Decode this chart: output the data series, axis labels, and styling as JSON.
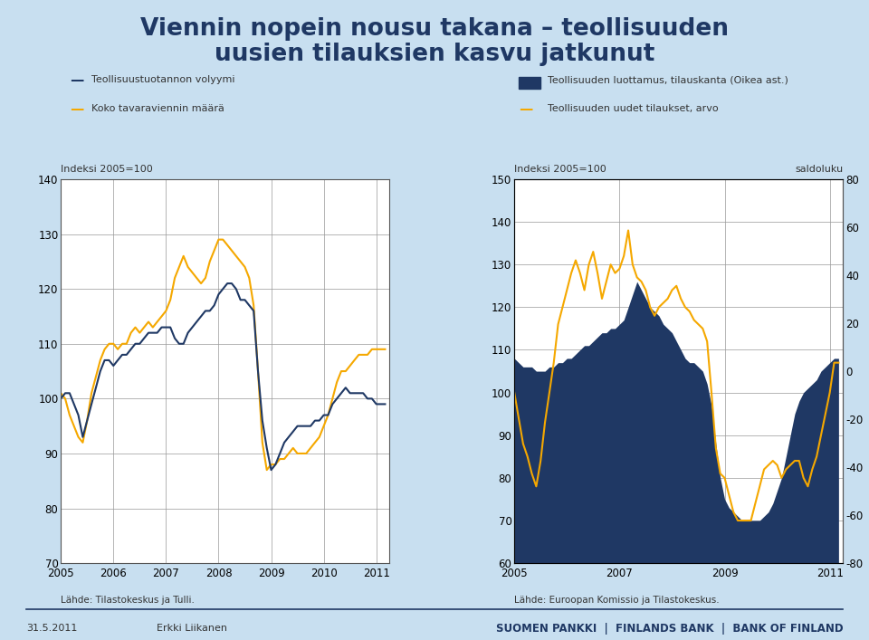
{
  "title_line1": "Viennin nopein nousu takana – teollisuuden",
  "title_line2": "uusien tilauksien kasvu jatkunut",
  "bg_color": "#c8dff0",
  "chart_bg": "#ffffff",
  "footer_left": "31.5.2011",
  "footer_center": "Erkki Liikanen",
  "footer_right": "SUOMEN PANKKI  |  FINLANDS BANK  |  BANK OF FINLAND",
  "chart1": {
    "legend1": "Teollisuustuotannon volyymi",
    "legend2": "Koko tavaraviennin määrä",
    "ylabel": "Indeksi 2005=100",
    "source": "Lähde: Tilastokeskus ja Tulli.",
    "ylim": [
      70,
      140
    ],
    "yticks": [
      70,
      80,
      90,
      100,
      110,
      120,
      130,
      140
    ],
    "color1": "#1f3864",
    "color2": "#f5a800",
    "line1_x": [
      2005.0,
      2005.083,
      2005.167,
      2005.25,
      2005.333,
      2005.417,
      2005.5,
      2005.583,
      2005.667,
      2005.75,
      2005.833,
      2005.917,
      2006.0,
      2006.083,
      2006.167,
      2006.25,
      2006.333,
      2006.417,
      2006.5,
      2006.583,
      2006.667,
      2006.75,
      2006.833,
      2006.917,
      2007.0,
      2007.083,
      2007.167,
      2007.25,
      2007.333,
      2007.417,
      2007.5,
      2007.583,
      2007.667,
      2007.75,
      2007.833,
      2007.917,
      2008.0,
      2008.083,
      2008.167,
      2008.25,
      2008.333,
      2008.417,
      2008.5,
      2008.583,
      2008.667,
      2008.75,
      2008.833,
      2008.917,
      2009.0,
      2009.083,
      2009.167,
      2009.25,
      2009.333,
      2009.417,
      2009.5,
      2009.583,
      2009.667,
      2009.75,
      2009.833,
      2009.917,
      2010.0,
      2010.083,
      2010.167,
      2010.25,
      2010.333,
      2010.417,
      2010.5,
      2010.583,
      2010.667,
      2010.75,
      2010.833,
      2010.917,
      2011.0,
      2011.083,
      2011.167
    ],
    "line1_y": [
      100,
      101,
      101,
      99,
      97,
      93,
      96,
      99,
      102,
      105,
      107,
      107,
      106,
      107,
      108,
      108,
      109,
      110,
      110,
      111,
      112,
      112,
      112,
      113,
      113,
      113,
      111,
      110,
      110,
      112,
      113,
      114,
      115,
      116,
      116,
      117,
      119,
      120,
      121,
      121,
      120,
      118,
      118,
      117,
      116,
      105,
      96,
      91,
      87,
      88,
      90,
      92,
      93,
      94,
      95,
      95,
      95,
      95,
      96,
      96,
      97,
      97,
      99,
      100,
      101,
      102,
      101,
      101,
      101,
      101,
      100,
      100,
      99,
      99,
      99
    ],
    "line2_x": [
      2005.0,
      2005.083,
      2005.167,
      2005.25,
      2005.333,
      2005.417,
      2005.5,
      2005.583,
      2005.667,
      2005.75,
      2005.833,
      2005.917,
      2006.0,
      2006.083,
      2006.167,
      2006.25,
      2006.333,
      2006.417,
      2006.5,
      2006.583,
      2006.667,
      2006.75,
      2006.833,
      2006.917,
      2007.0,
      2007.083,
      2007.167,
      2007.25,
      2007.333,
      2007.417,
      2007.5,
      2007.583,
      2007.667,
      2007.75,
      2007.833,
      2007.917,
      2008.0,
      2008.083,
      2008.167,
      2008.25,
      2008.333,
      2008.417,
      2008.5,
      2008.583,
      2008.667,
      2008.75,
      2008.833,
      2008.917,
      2009.0,
      2009.083,
      2009.167,
      2009.25,
      2009.333,
      2009.417,
      2009.5,
      2009.583,
      2009.667,
      2009.75,
      2009.833,
      2009.917,
      2010.0,
      2010.083,
      2010.167,
      2010.25,
      2010.333,
      2010.417,
      2010.5,
      2010.583,
      2010.667,
      2010.75,
      2010.833,
      2010.917,
      2011.0,
      2011.083,
      2011.167
    ],
    "line2_y": [
      101,
      100,
      97,
      95,
      93,
      92,
      96,
      101,
      104,
      107,
      109,
      110,
      110,
      109,
      110,
      110,
      112,
      113,
      112,
      113,
      114,
      113,
      114,
      115,
      116,
      118,
      122,
      124,
      126,
      124,
      123,
      122,
      121,
      122,
      125,
      127,
      129,
      129,
      128,
      127,
      126,
      125,
      124,
      122,
      117,
      105,
      92,
      87,
      88,
      88,
      89,
      89,
      90,
      91,
      90,
      90,
      90,
      91,
      92,
      93,
      95,
      97,
      100,
      103,
      105,
      105,
      106,
      107,
      108,
      108,
      108,
      109,
      109,
      109,
      109
    ]
  },
  "chart2": {
    "legend1": "Teollisuuden luottamus, tilauskanta (Oikea ast.)",
    "legend2": "Teollisuuden uudet tilaukset, arvo",
    "ylabel_left": "Indeksi 2005=100",
    "ylabel_right": "saldoluku",
    "source": "Lähde: Euroopan Komissio ja Tilastokeskus.",
    "ylim_left": [
      60,
      150
    ],
    "ylim_right": [
      -80,
      80
    ],
    "yticks_left": [
      60,
      70,
      80,
      90,
      100,
      110,
      120,
      130,
      140,
      150
    ],
    "yticks_right": [
      -80,
      -60,
      -40,
      -20,
      0,
      20,
      40,
      60,
      80
    ],
    "color_fill": "#1f3864",
    "color_line": "#f5a800",
    "fill_x": [
      2005.0,
      2005.083,
      2005.167,
      2005.25,
      2005.333,
      2005.417,
      2005.5,
      2005.583,
      2005.667,
      2005.75,
      2005.833,
      2005.917,
      2006.0,
      2006.083,
      2006.167,
      2006.25,
      2006.333,
      2006.417,
      2006.5,
      2006.583,
      2006.667,
      2006.75,
      2006.833,
      2006.917,
      2007.0,
      2007.083,
      2007.167,
      2007.25,
      2007.333,
      2007.417,
      2007.5,
      2007.583,
      2007.667,
      2007.75,
      2007.833,
      2007.917,
      2008.0,
      2008.083,
      2008.167,
      2008.25,
      2008.333,
      2008.417,
      2008.5,
      2008.583,
      2008.667,
      2008.75,
      2008.833,
      2008.917,
      2009.0,
      2009.083,
      2009.167,
      2009.25,
      2009.333,
      2009.417,
      2009.5,
      2009.583,
      2009.667,
      2009.75,
      2009.833,
      2009.917,
      2010.0,
      2010.083,
      2010.167,
      2010.25,
      2010.333,
      2010.417,
      2010.5,
      2010.583,
      2010.667,
      2010.75,
      2010.833,
      2010.917,
      2011.0,
      2011.083,
      2011.167
    ],
    "fill_y": [
      108,
      107,
      106,
      106,
      106,
      105,
      105,
      105,
      106,
      106,
      107,
      107,
      108,
      108,
      109,
      110,
      111,
      111,
      112,
      113,
      114,
      114,
      115,
      115,
      116,
      117,
      120,
      123,
      126,
      124,
      122,
      120,
      119,
      118,
      116,
      115,
      114,
      112,
      110,
      108,
      107,
      107,
      106,
      105,
      102,
      97,
      88,
      80,
      75,
      73,
      72,
      71,
      70,
      70,
      70,
      70,
      70,
      71,
      72,
      74,
      77,
      80,
      85,
      90,
      95,
      98,
      100,
      101,
      102,
      103,
      105,
      106,
      107,
      108,
      108
    ],
    "line_x": [
      2005.0,
      2005.083,
      2005.167,
      2005.25,
      2005.333,
      2005.417,
      2005.5,
      2005.583,
      2005.667,
      2005.75,
      2005.833,
      2005.917,
      2006.0,
      2006.083,
      2006.167,
      2006.25,
      2006.333,
      2006.417,
      2006.5,
      2006.583,
      2006.667,
      2006.75,
      2006.833,
      2006.917,
      2007.0,
      2007.083,
      2007.167,
      2007.25,
      2007.333,
      2007.417,
      2007.5,
      2007.583,
      2007.667,
      2007.75,
      2007.833,
      2007.917,
      2008.0,
      2008.083,
      2008.167,
      2008.25,
      2008.333,
      2008.417,
      2008.5,
      2008.583,
      2008.667,
      2008.75,
      2008.833,
      2008.917,
      2009.0,
      2009.083,
      2009.167,
      2009.25,
      2009.333,
      2009.417,
      2009.5,
      2009.583,
      2009.667,
      2009.75,
      2009.833,
      2009.917,
      2010.0,
      2010.083,
      2010.167,
      2010.25,
      2010.333,
      2010.417,
      2010.5,
      2010.583,
      2010.667,
      2010.75,
      2010.833,
      2010.917,
      2011.0,
      2011.083,
      2011.167
    ],
    "line_y": [
      100,
      94,
      88,
      85,
      81,
      78,
      84,
      93,
      100,
      107,
      116,
      120,
      124,
      128,
      131,
      128,
      124,
      130,
      133,
      128,
      122,
      126,
      130,
      128,
      129,
      132,
      138,
      130,
      127,
      126,
      124,
      120,
      118,
      120,
      121,
      122,
      124,
      125,
      122,
      120,
      119,
      117,
      116,
      115,
      112,
      100,
      87,
      81,
      80,
      76,
      72,
      70,
      70,
      70,
      70,
      74,
      78,
      82,
      83,
      84,
      83,
      80,
      82,
      83,
      84,
      84,
      80,
      78,
      82,
      85,
      90,
      95,
      100,
      107,
      107
    ]
  }
}
